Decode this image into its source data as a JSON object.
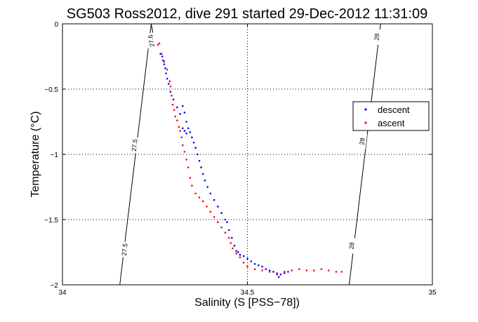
{
  "chart_data": {
    "type": "scatter",
    "title": "SG503 Ross2012, dive 291 started 29-Dec-2012 11:31:09",
    "xlabel": "Salinity (S [PSS−78])",
    "ylabel": "Temperature (°C)",
    "xlim": [
      34,
      35
    ],
    "ylim": [
      -2,
      0
    ],
    "xticks": [
      34,
      34.5,
      35
    ],
    "yticks": [
      0,
      -0.5,
      -1,
      -1.5,
      -2
    ],
    "xtick_labels": [
      "34",
      "34.5",
      "35"
    ],
    "ytick_labels": [
      "0",
      "−0.5",
      "−1",
      "−1.5",
      "−2"
    ],
    "grid": "dotted",
    "legend": {
      "position": "right",
      "entries": [
        "descent",
        "ascent"
      ]
    },
    "series": [
      {
        "name": "descent",
        "color": "#0000ff",
        "marker": "dot",
        "points": [
          [
            34.265,
            -0.23
          ],
          [
            34.27,
            -0.25
          ],
          [
            34.272,
            -0.28
          ],
          [
            34.275,
            -0.31
          ],
          [
            34.278,
            -0.34
          ],
          [
            34.28,
            -0.38
          ],
          [
            34.283,
            -0.42
          ],
          [
            34.287,
            -0.46
          ],
          [
            34.292,
            -0.52
          ],
          [
            34.3,
            -0.58
          ],
          [
            34.31,
            -0.64
          ],
          [
            34.318,
            -0.69
          ],
          [
            34.325,
            -0.63
          ],
          [
            34.33,
            -0.68
          ],
          [
            34.335,
            -0.75
          ],
          [
            34.325,
            -0.8
          ],
          [
            34.33,
            -0.82
          ],
          [
            34.335,
            -0.84
          ],
          [
            34.34,
            -0.8
          ],
          [
            34.345,
            -0.83
          ],
          [
            34.35,
            -0.87
          ],
          [
            34.355,
            -0.91
          ],
          [
            34.36,
            -0.95
          ],
          [
            34.365,
            -1.0
          ],
          [
            34.37,
            -1.05
          ],
          [
            34.375,
            -1.1
          ],
          [
            34.38,
            -1.15
          ],
          [
            34.385,
            -1.2
          ],
          [
            34.392,
            -1.25
          ],
          [
            34.4,
            -1.3
          ],
          [
            34.41,
            -1.35
          ],
          [
            34.42,
            -1.4
          ],
          [
            34.43,
            -1.45
          ],
          [
            34.44,
            -1.5
          ],
          [
            34.445,
            -1.52
          ],
          [
            34.45,
            -1.58
          ],
          [
            34.458,
            -1.64
          ],
          [
            34.465,
            -1.7
          ],
          [
            34.47,
            -1.74
          ],
          [
            34.475,
            -1.75
          ],
          [
            34.48,
            -1.77
          ],
          [
            34.49,
            -1.78
          ],
          [
            34.5,
            -1.8
          ],
          [
            34.51,
            -1.82
          ],
          [
            34.52,
            -1.84
          ],
          [
            34.53,
            -1.85
          ],
          [
            34.54,
            -1.86
          ],
          [
            34.55,
            -1.88
          ],
          [
            34.56,
            -1.89
          ],
          [
            34.57,
            -1.9
          ],
          [
            34.58,
            -1.92
          ],
          [
            34.585,
            -1.94
          ],
          [
            34.59,
            -1.92
          ],
          [
            34.6,
            -1.91
          ],
          [
            34.61,
            -1.9
          ]
        ]
      },
      {
        "name": "ascent",
        "color": "#ff0000",
        "marker": "dot",
        "points": [
          [
            34.258,
            -0.16
          ],
          [
            34.262,
            -0.15
          ],
          [
            34.268,
            -0.23
          ],
          [
            34.275,
            -0.29
          ],
          [
            34.283,
            -0.35
          ],
          [
            34.29,
            -0.44
          ],
          [
            34.292,
            -0.48
          ],
          [
            34.295,
            -0.55
          ],
          [
            34.298,
            -0.62
          ],
          [
            34.302,
            -0.66
          ],
          [
            34.305,
            -0.71
          ],
          [
            34.31,
            -0.74
          ],
          [
            34.315,
            -0.79
          ],
          [
            34.318,
            -0.82
          ],
          [
            34.322,
            -0.87
          ],
          [
            34.325,
            -0.93
          ],
          [
            34.33,
            -0.98
          ],
          [
            34.335,
            -1.04
          ],
          [
            34.34,
            -1.1
          ],
          [
            34.345,
            -1.18
          ],
          [
            34.35,
            -1.24
          ],
          [
            34.36,
            -1.3
          ],
          [
            34.37,
            -1.33
          ],
          [
            34.38,
            -1.36
          ],
          [
            34.39,
            -1.4
          ],
          [
            34.4,
            -1.44
          ],
          [
            34.41,
            -1.48
          ],
          [
            34.42,
            -1.52
          ],
          [
            34.43,
            -1.56
          ],
          [
            34.44,
            -1.6
          ],
          [
            34.45,
            -1.64
          ],
          [
            34.455,
            -1.68
          ],
          [
            34.46,
            -1.72
          ],
          [
            34.47,
            -1.76
          ],
          [
            34.48,
            -1.79
          ],
          [
            34.49,
            -1.83
          ],
          [
            34.5,
            -1.86
          ],
          [
            34.52,
            -1.88
          ],
          [
            34.54,
            -1.89
          ],
          [
            34.56,
            -1.9
          ],
          [
            34.58,
            -1.91
          ],
          [
            34.6,
            -1.9
          ],
          [
            34.62,
            -1.89
          ],
          [
            34.64,
            -1.88
          ],
          [
            34.66,
            -1.89
          ],
          [
            34.68,
            -1.89
          ],
          [
            34.7,
            -1.88
          ],
          [
            34.72,
            -1.89
          ],
          [
            34.74,
            -1.9
          ],
          [
            34.755,
            -1.9
          ]
        ]
      }
    ],
    "isopycnals": [
      {
        "label": "27.5",
        "points": [
          [
            34.155,
            -2.0
          ],
          [
            34.24,
            0.0
          ]
        ],
        "label_positions": [
          [
            34.168,
            -1.73
          ],
          [
            34.195,
            -0.93
          ]
        ]
      },
      {
        "label": "27.6",
        "points": [
          [
            34.24,
            0.0
          ],
          [
            34.245,
            -0.08
          ]
        ],
        "label_positions": [
          [
            34.24,
            -0.13
          ]
        ]
      },
      {
        "label": "28",
        "points": [
          [
            34.775,
            -2.0
          ],
          [
            34.86,
            0.0
          ]
        ],
        "label_positions": [
          [
            34.782,
            -1.7
          ],
          [
            34.81,
            -0.9
          ],
          [
            34.85,
            -0.1
          ]
        ]
      }
    ]
  }
}
